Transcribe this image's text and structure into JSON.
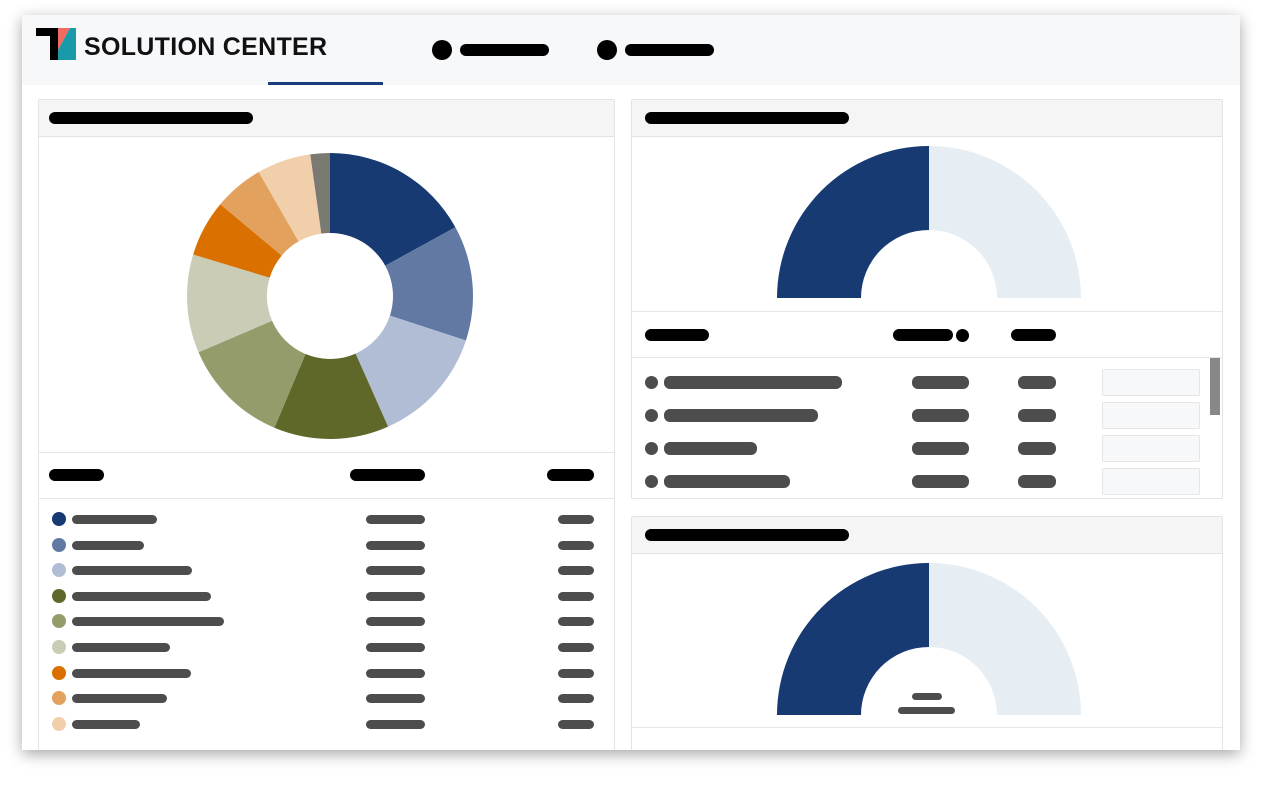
{
  "app": {
    "brand": "SOLUTION CENTER",
    "logo_colors": {
      "dark": "#000000",
      "coral": "#f26b61",
      "teal": "#1a9aa8"
    }
  },
  "nav": {
    "items": [
      {
        "icon": "circle-icon",
        "active": true
      },
      {
        "icon": "circle-icon",
        "active": false
      }
    ],
    "accent": "#1a3d7c"
  },
  "chart_data": [
    {
      "type": "pie",
      "donut": true,
      "values": [
        17,
        13,
        13.3,
        13,
        12.2,
        11.1,
        6.4,
        5.6,
        6.1,
        2.2
      ],
      "colors": [
        "#173a73",
        "#627aa3",
        "#b0bdd5",
        "#5f6828",
        "#959c6c",
        "#caccb5",
        "#d97000",
        "#e2a15d",
        "#f1cfab",
        "#7a7a72"
      ]
    },
    {
      "type": "gauge",
      "value_fraction": 0.5,
      "colors": [
        "#173a73",
        "#e6eef4"
      ]
    },
    {
      "type": "gauge",
      "value_fraction": 0.5,
      "colors": [
        "#173a73",
        "#e6eef4"
      ]
    }
  ],
  "scrollbar": {
    "thumb_color": "#888888"
  }
}
